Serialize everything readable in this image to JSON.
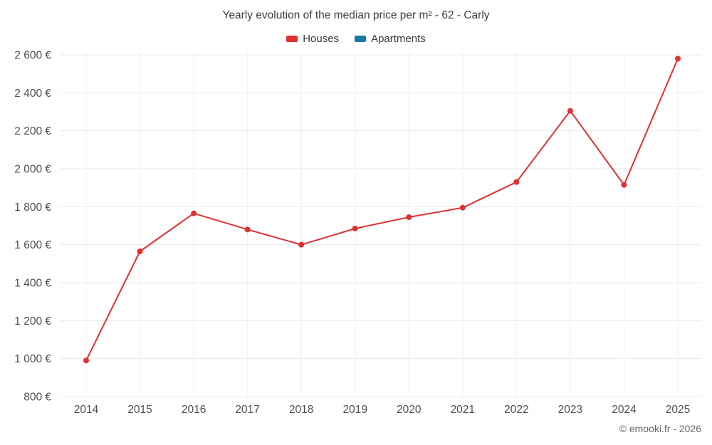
{
  "title": "Yearly evolution of the median price per m² - 62 - Carly",
  "legend": {
    "items": [
      {
        "label": "Houses",
        "color": "#e03131"
      },
      {
        "label": "Apartments",
        "color": "#1779a8"
      }
    ]
  },
  "footer": "© emooki.fr - 2026",
  "colors": {
    "grid_horizontal": "#e9e9e9",
    "grid_vertical": "#f1f1f1",
    "tick_label": "#4f4f4f"
  },
  "chart_data": {
    "type": "line",
    "title": "Yearly evolution of the median price per m² - 62 - Carly",
    "categories": [
      "2014",
      "2015",
      "2016",
      "2017",
      "2018",
      "2019",
      "2020",
      "2021",
      "2022",
      "2023",
      "2024",
      "2025"
    ],
    "series": [
      {
        "name": "Houses",
        "color": "#e03131",
        "values": [
          990,
          1565,
          1765,
          1680,
          1600,
          1685,
          1745,
          1795,
          1930,
          2305,
          1915,
          2580
        ]
      },
      {
        "name": "Apartments",
        "color": "#1779a8",
        "values": []
      }
    ],
    "xlabel": "",
    "ylabel": "",
    "ylim": [
      800,
      2600
    ],
    "yticks": [
      800,
      1000,
      1200,
      1400,
      1600,
      1800,
      2000,
      2200,
      2400,
      2600
    ],
    "ytick_labels": [
      "800 €",
      "1 000 €",
      "1 200 €",
      "1 400 €",
      "1 600 €",
      "1 800 €",
      "2 000 €",
      "2 200 €",
      "2 400 €",
      "2 600 €"
    ],
    "grid": true,
    "legend_position": "top"
  }
}
